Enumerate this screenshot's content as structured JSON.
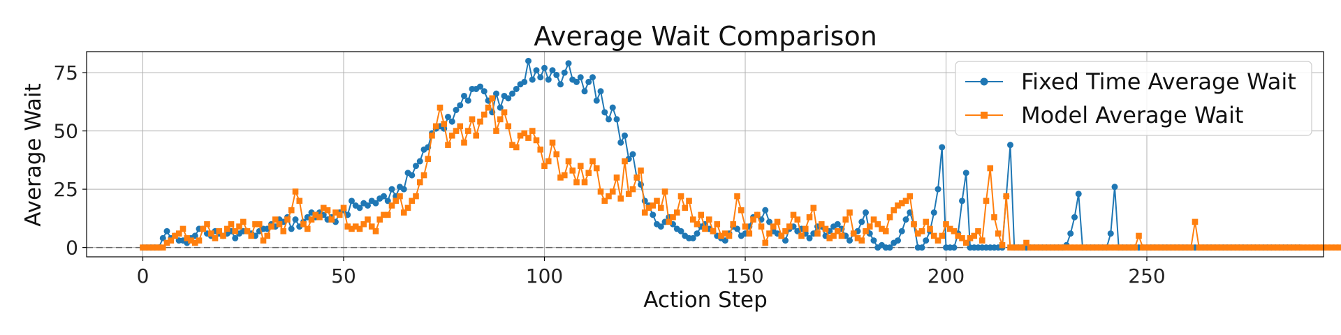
{
  "chart_data": {
    "type": "line",
    "title": "Average Wait Comparison",
    "xlabel": "Action Step",
    "ylabel": "Average Wait",
    "xlim": [
      -14,
      294
    ],
    "ylim": [
      -4,
      84
    ],
    "xticks": [
      0,
      50,
      100,
      150,
      200,
      250
    ],
    "yticks": [
      0,
      25,
      50,
      75
    ],
    "grid": true,
    "legend_position": "top-right",
    "reference_line": {
      "y": 0,
      "style": "dashed",
      "color": "#666666"
    },
    "series": [
      {
        "name": "Fixed Time Average Wait",
        "color": "#1f77b4",
        "marker": "circle",
        "values": [
          0,
          0,
          0,
          0,
          0,
          4,
          7,
          4,
          5,
          3,
          3,
          2,
          4,
          5,
          8,
          8,
          6,
          5,
          7,
          6,
          5,
          6,
          7,
          4,
          6,
          7,
          7,
          6,
          5,
          7,
          8,
          8,
          10,
          9,
          12,
          11,
          13,
          8,
          12,
          9,
          11,
          13,
          15,
          13,
          15,
          14,
          12,
          13,
          11,
          15,
          16,
          14,
          20,
          18,
          17,
          19,
          18,
          20,
          19,
          21,
          22,
          20,
          25,
          22,
          26,
          25,
          32,
          31,
          35,
          37,
          42,
          43,
          49,
          51,
          52,
          51,
          56,
          54,
          59,
          61,
          65,
          63,
          68,
          68,
          69,
          67,
          63,
          58,
          66,
          60,
          65,
          64,
          66,
          68,
          70,
          71,
          80,
          72,
          76,
          73,
          77,
          72,
          76,
          74,
          70,
          75,
          79,
          72,
          71,
          73,
          67,
          71,
          73,
          63,
          67,
          58,
          55,
          60,
          55,
          45,
          48,
          38,
          40,
          30,
          27,
          20,
          18,
          14,
          10,
          9,
          11,
          13,
          10,
          8,
          7,
          5,
          4,
          4,
          6,
          9,
          10,
          8,
          7,
          5,
          4,
          3,
          6,
          9,
          8,
          5,
          6,
          9,
          13,
          14,
          12,
          16,
          11,
          7,
          6,
          5,
          3,
          8,
          9,
          7,
          8,
          6,
          4,
          6,
          9,
          9,
          5,
          7,
          9,
          10,
          8,
          5,
          3,
          6,
          7,
          11,
          15,
          6,
          3,
          0,
          1,
          0,
          0,
          2,
          3,
          7,
          12,
          15,
          10,
          0,
          0,
          3,
          7,
          15,
          25,
          43,
          0,
          0,
          0,
          6,
          20,
          32,
          0,
          0,
          0,
          0,
          0,
          0,
          0,
          0,
          0,
          22,
          44,
          0,
          0,
          0,
          0,
          0,
          0,
          0,
          0,
          0,
          0,
          0,
          0,
          0,
          1,
          6,
          13,
          23,
          0,
          0,
          0,
          0,
          0,
          0,
          0,
          6,
          26,
          0,
          0,
          0,
          0,
          0,
          0,
          0,
          0,
          0,
          0,
          0,
          0,
          0,
          0,
          0,
          0,
          0,
          0,
          0,
          0,
          0,
          0,
          0,
          0,
          0,
          0,
          0,
          0,
          0,
          0,
          0,
          0,
          0,
          0,
          0,
          0,
          0,
          0,
          0,
          0,
          0,
          0,
          0,
          0,
          0,
          0
        ]
      },
      {
        "name": "Model Average Wait",
        "color": "#ff7f0e",
        "marker": "square",
        "values": [
          0,
          0,
          0,
          0,
          0,
          0,
          2,
          3,
          5,
          6,
          8,
          4,
          3,
          2,
          3,
          8,
          10,
          6,
          4,
          7,
          5,
          8,
          10,
          7,
          9,
          11,
          7,
          5,
          10,
          10,
          3,
          5,
          9,
          12,
          10,
          7,
          12,
          16,
          24,
          20,
          10,
          8,
          12,
          14,
          13,
          17,
          16,
          12,
          15,
          14,
          17,
          9,
          8,
          9,
          8,
          10,
          12,
          9,
          7,
          12,
          14,
          14,
          18,
          20,
          22,
          15,
          17,
          20,
          22,
          28,
          31,
          38,
          48,
          52,
          60,
          53,
          44,
          48,
          50,
          52,
          45,
          50,
          55,
          48,
          54,
          57,
          60,
          64,
          50,
          55,
          58,
          52,
          44,
          43,
          48,
          49,
          47,
          50,
          46,
          42,
          35,
          37,
          45,
          40,
          30,
          31,
          37,
          33,
          28,
          35,
          28,
          32,
          37,
          34,
          24,
          20,
          22,
          24,
          30,
          21,
          37,
          23,
          25,
          30,
          33,
          15,
          17,
          18,
          20,
          17,
          24,
          11,
          13,
          15,
          22,
          17,
          20,
          12,
          10,
          14,
          8,
          12,
          7,
          10,
          5,
          6,
          5,
          10,
          22,
          16,
          9,
          6,
          12,
          14,
          9,
          2,
          6,
          9,
          11,
          5,
          7,
          9,
          14,
          12,
          5,
          8,
          13,
          17,
          6,
          10,
          8,
          4,
          5,
          7,
          5,
          12,
          15,
          6,
          4,
          3,
          7,
          9,
          12,
          10,
          8,
          7,
          13,
          16,
          18,
          19,
          20,
          22,
          10,
          6,
          7,
          11,
          8,
          5,
          3,
          5,
          10,
          8,
          7,
          5,
          4,
          2,
          4,
          5,
          7,
          3,
          20,
          34,
          13,
          6,
          1,
          22,
          0,
          0,
          0,
          0,
          2,
          0,
          0,
          0,
          0,
          0,
          0,
          0,
          0,
          0,
          0,
          0,
          0,
          0,
          0,
          0,
          0,
          0,
          0,
          0,
          0,
          0,
          0,
          0,
          0,
          0,
          0,
          0,
          5,
          0,
          0,
          0,
          0,
          0,
          0,
          0,
          0,
          0,
          0,
          0,
          0,
          0,
          11,
          0,
          0,
          0,
          0,
          0,
          0,
          0,
          0,
          0,
          0,
          0,
          0,
          0,
          0,
          0,
          0,
          0,
          0,
          0,
          0,
          0,
          0,
          0,
          0,
          0,
          0,
          0,
          0,
          0,
          0,
          0,
          0,
          0,
          0,
          0,
          0,
          0,
          0,
          0,
          0,
          0,
          0,
          0
        ]
      }
    ]
  }
}
